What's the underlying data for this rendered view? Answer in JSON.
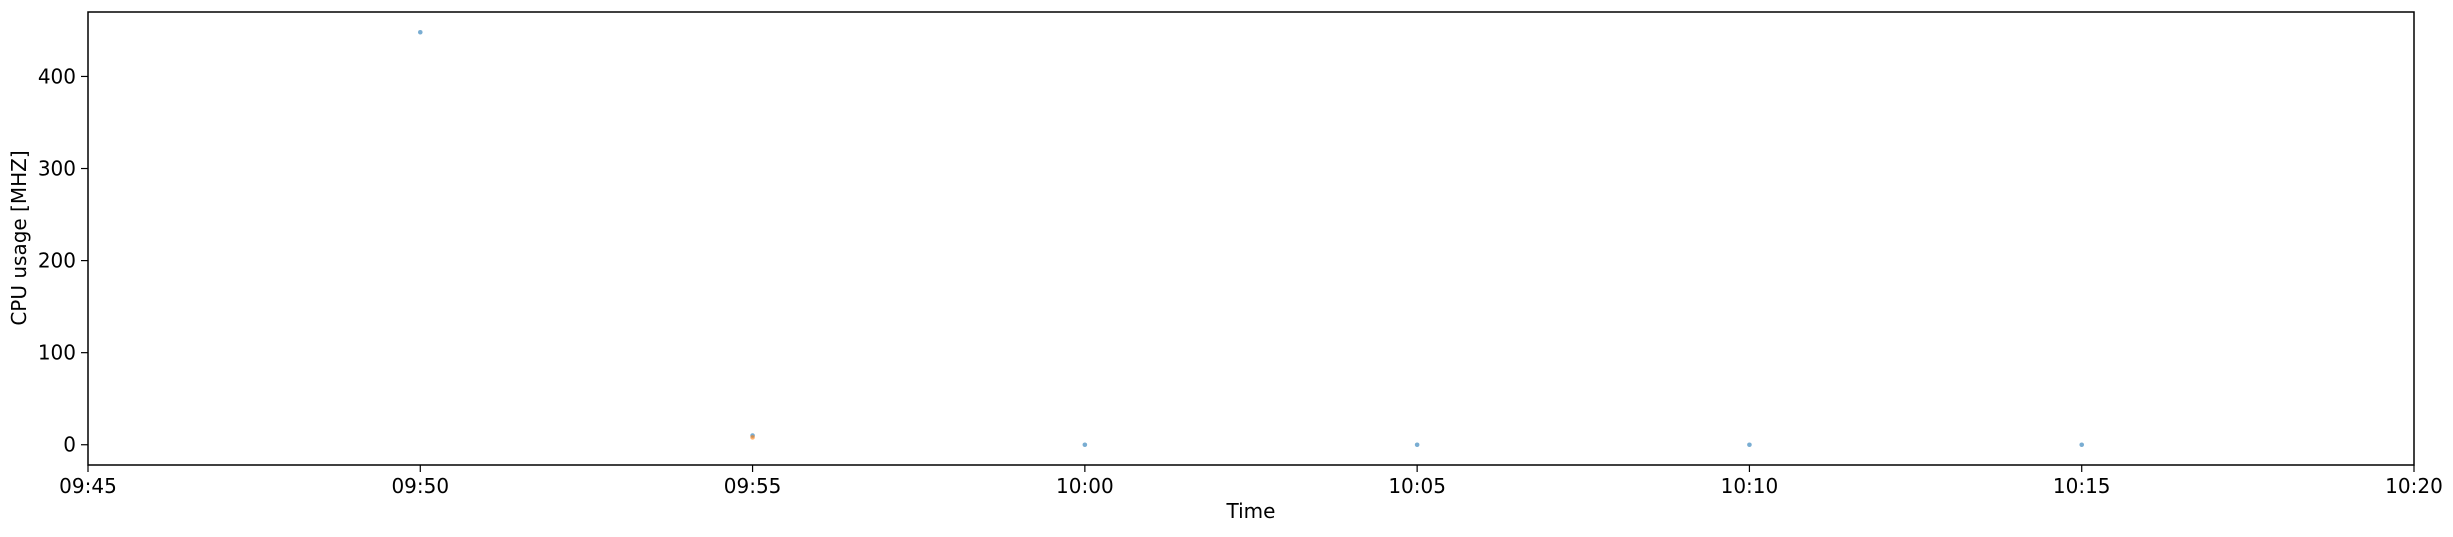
{
  "chart_data": {
    "type": "scatter",
    "title": "",
    "xlabel": "Time",
    "ylabel": "CPU usage [MHZ]",
    "x_ticks": [
      "09:45",
      "09:50",
      "09:55",
      "10:00",
      "10:05",
      "10:10",
      "10:15",
      "10:20"
    ],
    "y_ticks": [
      0,
      100,
      200,
      300,
      400
    ],
    "xlim": [
      "09:45",
      "10:20"
    ],
    "ylim": [
      -22,
      470
    ],
    "grid": false,
    "series": [
      {
        "color": "#1f77b4",
        "x": [
          "09:50",
          "09:55",
          "10:00",
          "10:05",
          "10:10",
          "10:15"
        ],
        "y": [
          448,
          10,
          0,
          0,
          0,
          0
        ]
      },
      {
        "color": "#ff7f0e",
        "x": [
          "09:55"
        ],
        "y": [
          8
        ]
      }
    ]
  }
}
